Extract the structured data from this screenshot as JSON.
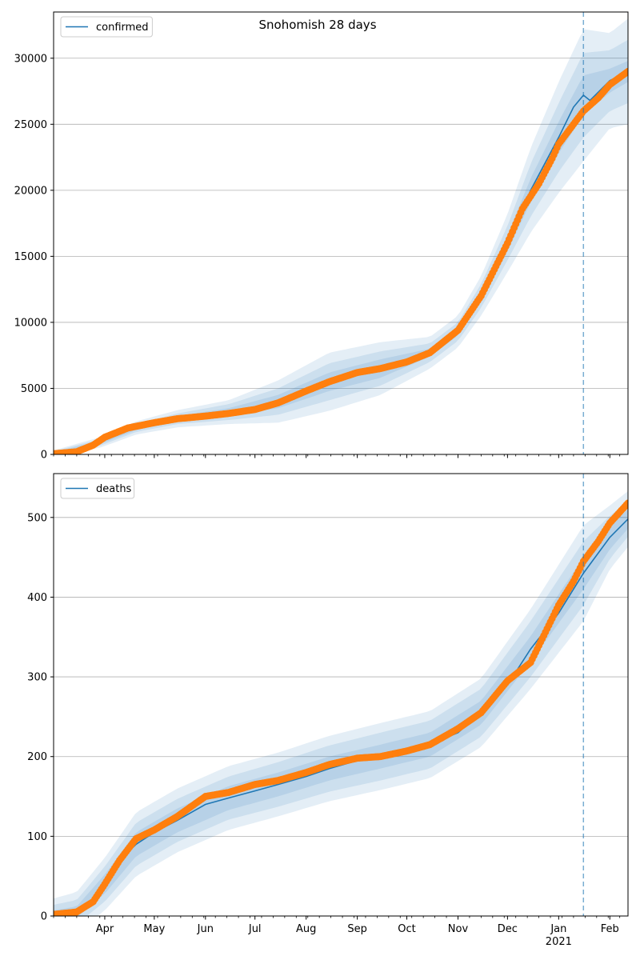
{
  "figure": {
    "title": "Snohomish 28 days"
  },
  "chart_data": [
    {
      "type": "line",
      "name": "confirmed",
      "title": "Snohomish 28 days",
      "legend": {
        "position": "top-left",
        "entries": [
          "confirmed"
        ]
      },
      "grid": "y",
      "ylim": [
        0,
        33500
      ],
      "yticks": [
        0,
        5000,
        10000,
        15000,
        20000,
        25000,
        30000
      ],
      "xlim": [
        "2020-03-01",
        "2021-02-12"
      ],
      "forecast_start": "2021-01-16",
      "colors": {
        "line": "#1f77b4",
        "observed": "#ff7f0e",
        "band": "#1f77b4",
        "divider": "#1f77b4"
      },
      "series": [
        {
          "name": "confirmed",
          "kind": "model",
          "points": [
            [
              "2020-03-01",
              100
            ],
            [
              "2020-03-15",
              200
            ],
            [
              "2020-03-29",
              900
            ],
            [
              "2020-04-08",
              1500
            ],
            [
              "2020-04-20",
              2000
            ],
            [
              "2020-05-01",
              2400
            ],
            [
              "2020-05-15",
              2700
            ],
            [
              "2020-06-01",
              3000
            ],
            [
              "2020-06-15",
              3200
            ],
            [
              "2020-07-01",
              3600
            ],
            [
              "2020-07-15",
              4000
            ],
            [
              "2020-08-01",
              4800
            ],
            [
              "2020-08-15",
              5500
            ],
            [
              "2020-09-01",
              6100
            ],
            [
              "2020-09-15",
              6500
            ],
            [
              "2020-10-01",
              7000
            ],
            [
              "2020-10-15",
              7700
            ],
            [
              "2020-11-01",
              9300
            ],
            [
              "2020-11-15",
              12000
            ],
            [
              "2020-12-01",
              16000
            ],
            [
              "2020-12-15",
              20000
            ],
            [
              "2021-01-01",
              24000
            ],
            [
              "2021-01-10",
              26300
            ],
            [
              "2021-01-16",
              27200
            ],
            [
              "2021-01-20",
              26800
            ],
            [
              "2021-02-01",
              28300
            ],
            [
              "2021-02-12",
              29000
            ]
          ]
        },
        {
          "name": "observed",
          "kind": "points",
          "points": [
            [
              "2020-03-01",
              50
            ],
            [
              "2020-03-15",
              200
            ],
            [
              "2020-03-25",
              700
            ],
            [
              "2020-04-01",
              1300
            ],
            [
              "2020-04-15",
              2000
            ],
            [
              "2020-05-01",
              2400
            ],
            [
              "2020-05-15",
              2700
            ],
            [
              "2020-06-01",
              2900
            ],
            [
              "2020-06-15",
              3100
            ],
            [
              "2020-07-01",
              3400
            ],
            [
              "2020-07-15",
              3900
            ],
            [
              "2020-08-01",
              4800
            ],
            [
              "2020-08-15",
              5500
            ],
            [
              "2020-09-01",
              6200
            ],
            [
              "2020-09-15",
              6500
            ],
            [
              "2020-10-01",
              7000
            ],
            [
              "2020-10-15",
              7700
            ],
            [
              "2020-11-01",
              9400
            ],
            [
              "2020-11-15",
              12000
            ],
            [
              "2020-12-01",
              16000
            ],
            [
              "2020-12-10",
              18600
            ],
            [
              "2020-12-20",
              20500
            ],
            [
              "2020-12-28",
              22400
            ],
            [
              "2021-01-01",
              23500
            ],
            [
              "2021-01-10",
              25000
            ],
            [
              "2021-01-16",
              26000
            ],
            [
              "2021-01-25",
              27000
            ],
            [
              "2021-02-01",
              28000
            ],
            [
              "2021-02-12",
              29000
            ]
          ]
        }
      ],
      "band_points": [
        [
          "2020-03-01",
          100
        ],
        [
          "2020-03-29",
          900
        ],
        [
          "2020-04-20",
          2000
        ],
        [
          "2020-05-15",
          2700
        ],
        [
          "2020-06-15",
          3200
        ],
        [
          "2020-07-15",
          4000
        ],
        [
          "2020-08-15",
          5500
        ],
        [
          "2020-09-15",
          6500
        ],
        [
          "2020-10-15",
          7700
        ],
        [
          "2020-11-01",
          9300
        ],
        [
          "2020-11-15",
          12000
        ],
        [
          "2020-12-01",
          16000
        ],
        [
          "2020-12-15",
          20000
        ],
        [
          "2021-01-01",
          24000
        ],
        [
          "2021-01-16",
          27200
        ],
        [
          "2021-02-01",
          28300
        ],
        [
          "2021-02-12",
          29000
        ]
      ],
      "band_widths": [
        [
          60,
          130,
          200
        ],
        [
          120,
          250,
          400
        ],
        [
          150,
          300,
          500
        ],
        [
          200,
          400,
          650
        ],
        [
          300,
          600,
          900
        ],
        [
          500,
          1000,
          1600
        ],
        [
          700,
          1400,
          2200
        ],
        [
          700,
          1300,
          2000
        ],
        [
          300,
          700,
          1200
        ],
        [
          300,
          700,
          1200
        ],
        [
          400,
          900,
          1500
        ],
        [
          600,
          1300,
          2200
        ],
        [
          900,
          2000,
          3200
        ],
        [
          1200,
          2600,
          4200
        ],
        [
          1500,
          3200,
          5000
        ],
        [
          900,
          2300,
          3600
        ],
        [
          800,
          2400,
          4000
        ]
      ]
    },
    {
      "type": "line",
      "name": "deaths",
      "legend": {
        "position": "top-left",
        "entries": [
          "deaths"
        ]
      },
      "grid": "y",
      "ylim": [
        0,
        555
      ],
      "yticks": [
        0,
        100,
        200,
        300,
        400,
        500
      ],
      "xlim": [
        "2020-03-01",
        "2021-02-12"
      ],
      "forecast_start": "2021-01-16",
      "xticks": [
        {
          "date": "2020-04-01",
          "label": "Apr"
        },
        {
          "date": "2020-05-01",
          "label": "May"
        },
        {
          "date": "2020-06-01",
          "label": "Jun"
        },
        {
          "date": "2020-07-01",
          "label": "Jul"
        },
        {
          "date": "2020-08-01",
          "label": "Aug"
        },
        {
          "date": "2020-09-01",
          "label": "Sep"
        },
        {
          "date": "2020-10-01",
          "label": "Oct"
        },
        {
          "date": "2020-11-01",
          "label": "Nov"
        },
        {
          "date": "2020-12-01",
          "label": "Dec"
        },
        {
          "date": "2021-01-01",
          "label": "Jan",
          "sublabel": "2021"
        },
        {
          "date": "2021-02-01",
          "label": "Feb"
        }
      ],
      "colors": {
        "line": "#1f77b4",
        "observed": "#ff7f0e",
        "band": "#1f77b4",
        "divider": "#1f77b4"
      },
      "series": [
        {
          "name": "deaths",
          "kind": "model",
          "points": [
            [
              "2020-03-01",
              2
            ],
            [
              "2020-03-15",
              5
            ],
            [
              "2020-03-25",
              15
            ],
            [
              "2020-04-01",
              40
            ],
            [
              "2020-04-10",
              70
            ],
            [
              "2020-04-20",
              90
            ],
            [
              "2020-05-01",
              105
            ],
            [
              "2020-05-15",
              120
            ],
            [
              "2020-06-01",
              140
            ],
            [
              "2020-06-15",
              148
            ],
            [
              "2020-07-01",
              157
            ],
            [
              "2020-07-15",
              165
            ],
            [
              "2020-08-01",
              175
            ],
            [
              "2020-08-15",
              185
            ],
            [
              "2020-09-01",
              195
            ],
            [
              "2020-09-15",
              200
            ],
            [
              "2020-10-01",
              205
            ],
            [
              "2020-10-15",
              215
            ],
            [
              "2020-11-01",
              230
            ],
            [
              "2020-11-15",
              255
            ],
            [
              "2020-12-01",
              290
            ],
            [
              "2020-12-15",
              335
            ],
            [
              "2021-01-01",
              380
            ],
            [
              "2021-01-16",
              430
            ],
            [
              "2021-02-01",
              475
            ],
            [
              "2021-02-12",
              498
            ]
          ]
        },
        {
          "name": "observed",
          "kind": "points",
          "points": [
            [
              "2020-03-01",
              2
            ],
            [
              "2020-03-15",
              5
            ],
            [
              "2020-03-25",
              18
            ],
            [
              "2020-04-01",
              40
            ],
            [
              "2020-04-10",
              70
            ],
            [
              "2020-04-20",
              97
            ],
            [
              "2020-05-01",
              108
            ],
            [
              "2020-05-15",
              125
            ],
            [
              "2020-06-01",
              150
            ],
            [
              "2020-06-15",
              155
            ],
            [
              "2020-07-01",
              165
            ],
            [
              "2020-07-15",
              170
            ],
            [
              "2020-08-01",
              180
            ],
            [
              "2020-08-15",
              190
            ],
            [
              "2020-09-01",
              198
            ],
            [
              "2020-09-15",
              200
            ],
            [
              "2020-10-01",
              207
            ],
            [
              "2020-10-15",
              215
            ],
            [
              "2020-11-01",
              235
            ],
            [
              "2020-11-15",
              255
            ],
            [
              "2020-12-01",
              295
            ],
            [
              "2020-12-15",
              318
            ],
            [
              "2021-01-01",
              390
            ],
            [
              "2021-01-10",
              420
            ],
            [
              "2021-01-16",
              445
            ],
            [
              "2021-01-25",
              470
            ],
            [
              "2021-02-01",
              493
            ],
            [
              "2021-02-12",
              518
            ]
          ]
        }
      ],
      "band_points": [
        [
          "2020-03-01",
          2
        ],
        [
          "2020-03-15",
          5
        ],
        [
          "2020-04-01",
          40
        ],
        [
          "2020-04-20",
          90
        ],
        [
          "2020-05-15",
          120
        ],
        [
          "2020-06-15",
          148
        ],
        [
          "2020-07-15",
          165
        ],
        [
          "2020-08-15",
          185
        ],
        [
          "2020-09-15",
          200
        ],
        [
          "2020-10-15",
          215
        ],
        [
          "2020-11-15",
          255
        ],
        [
          "2020-12-15",
          335
        ],
        [
          "2021-01-16",
          430
        ],
        [
          "2021-02-01",
          475
        ],
        [
          "2021-02-12",
          498
        ]
      ],
      "band_widths": [
        [
          5,
          12,
          20
        ],
        [
          7,
          15,
          25
        ],
        [
          12,
          22,
          33
        ],
        [
          15,
          27,
          40
        ],
        [
          15,
          27,
          40
        ],
        [
          15,
          27,
          40
        ],
        [
          15,
          28,
          40
        ],
        [
          15,
          29,
          41
        ],
        [
          15,
          30,
          42
        ],
        [
          15,
          30,
          42
        ],
        [
          15,
          30,
          43
        ],
        [
          16,
          35,
          50
        ],
        [
          20,
          40,
          60
        ],
        [
          15,
          27,
          40
        ],
        [
          12,
          22,
          35
        ]
      ]
    }
  ]
}
